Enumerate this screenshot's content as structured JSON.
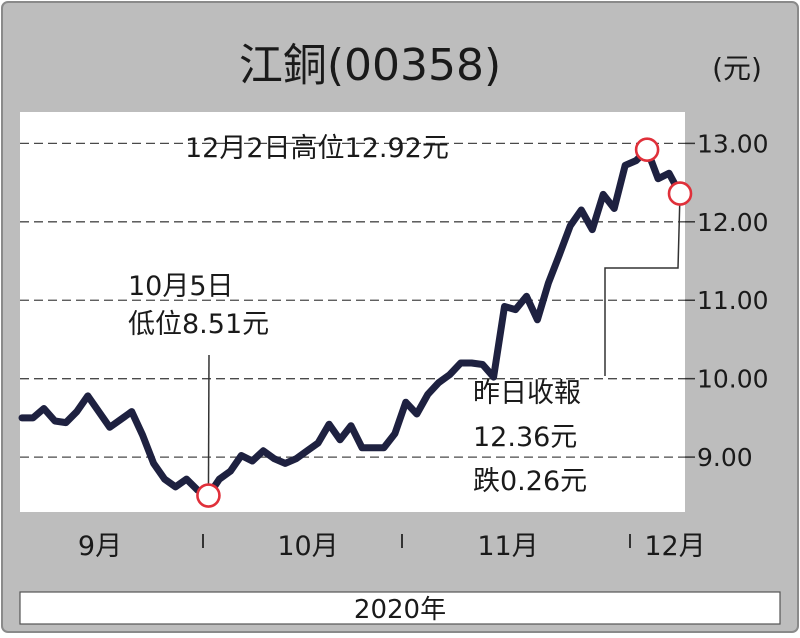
{
  "chart_data": {
    "type": "line",
    "title": "江銅(00358)",
    "unit": "(元)",
    "period_label": "2020年",
    "ylim": [
      8.3,
      13.4
    ],
    "yticks": [
      {
        "value": 13,
        "label": "13.00"
      },
      {
        "value": 12,
        "label": "12.00"
      },
      {
        "value": 11,
        "label": "11.00"
      },
      {
        "value": 10,
        "label": "10.00"
      },
      {
        "value": 9,
        "label": "9.00"
      }
    ],
    "month_labels": [
      "9月",
      "10月",
      "11月",
      "12月"
    ],
    "grid": true,
    "series": [
      {
        "values": [
          9.5,
          9.5,
          9.62,
          9.46,
          9.44,
          9.58,
          9.78,
          9.58,
          9.38,
          9.48,
          9.58,
          9.28,
          8.92,
          8.72,
          8.62,
          8.72,
          8.58,
          8.51,
          8.72,
          8.82,
          9.02,
          8.95,
          9.08,
          8.98,
          8.92,
          8.98,
          9.08,
          9.18,
          9.42,
          9.22,
          9.4,
          9.12,
          9.12,
          9.12,
          9.3,
          9.7,
          9.55,
          9.8,
          9.95,
          10.05,
          10.2,
          10.2,
          10.18,
          10.02,
          10.92,
          10.88,
          11.05,
          10.75,
          11.22,
          11.58,
          11.95,
          12.15,
          11.9,
          12.35,
          12.17,
          12.72,
          12.78,
          12.92,
          12.55,
          12.62,
          12.36
        ]
      }
    ],
    "annotations": {
      "high_label": "12月2日高位12.92元",
      "low_label": [
        "10月5日",
        "低位8.51元"
      ],
      "last_label": [
        "昨日收報",
        "12.36元",
        "跌0.26元"
      ]
    }
  },
  "colors": {
    "frame": "#bdbdbd",
    "plot_bg": "#ffffff",
    "line": "#1e2140",
    "marker": "#e0303a"
  }
}
